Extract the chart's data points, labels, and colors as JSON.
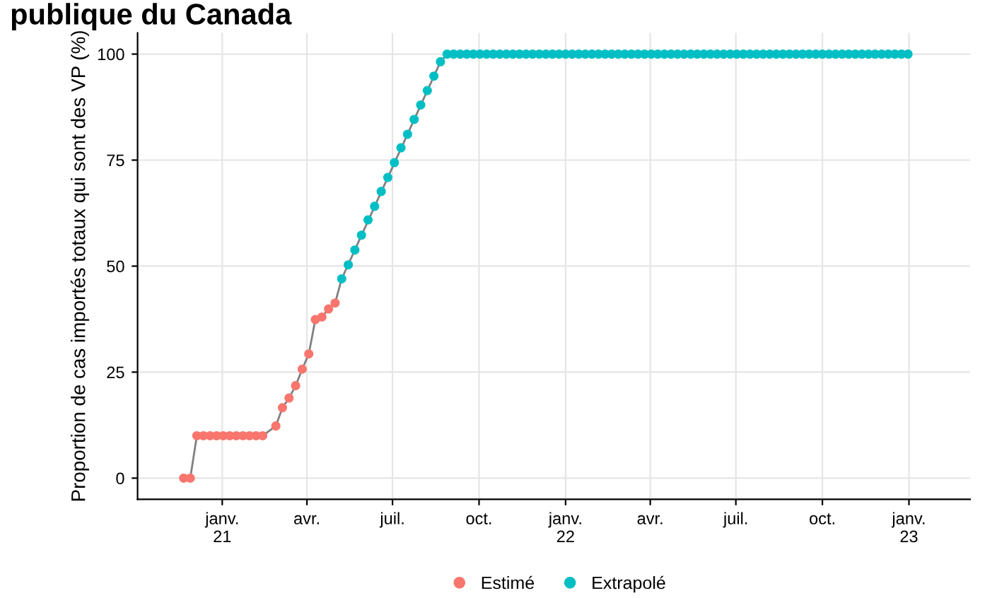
{
  "chart_data": {
    "type": "scatter",
    "title": "publique du Canada",
    "ylabel": "Proportion de cas importés totaux qui sont des VP (%)",
    "xlim": [
      "2020-10-03",
      "2023-03-07"
    ],
    "ylim": [
      -5,
      105
    ],
    "yticks": [
      0,
      25,
      50,
      75,
      100
    ],
    "xticks": [
      {
        "value": "2021-01-01",
        "label": "janv.\n21"
      },
      {
        "value": "2021-04-01",
        "label": "avr."
      },
      {
        "value": "2021-07-01",
        "label": "juil."
      },
      {
        "value": "2021-10-01",
        "label": "oct."
      },
      {
        "value": "2022-01-01",
        "label": "janv.\n22"
      },
      {
        "value": "2022-04-01",
        "label": "avr."
      },
      {
        "value": "2022-07-01",
        "label": "juil."
      },
      {
        "value": "2022-10-01",
        "label": "oct."
      },
      {
        "value": "2023-01-01",
        "label": "janv.\n23"
      }
    ],
    "grid": true,
    "legend": "bottom",
    "marker": "circle",
    "series": [
      {
        "type": "line",
        "marker": "none",
        "color": "#808080",
        "x": [
          "2020-11-21",
          "2020-11-28",
          "2020-12-05",
          "2021-02-13",
          "2021-02-27",
          "2021-03-06",
          "2021-03-13",
          "2021-03-20",
          "2021-03-27",
          "2021-04-03",
          "2021-04-10",
          "2021-04-17",
          "2021-04-24",
          "2021-05-01",
          "2021-05-08",
          "2021-08-21",
          "2021-08-28",
          "2022-12-31"
        ],
        "values": [
          0,
          0,
          10,
          10,
          12.3,
          16.6,
          18.9,
          21.8,
          25.7,
          29.3,
          37.4,
          38.0,
          39.9,
          41.3,
          47.0,
          98.2,
          100,
          100
        ]
      },
      {
        "name": "Estimé",
        "color": "#f8766d",
        "x": [
          "2020-11-21",
          "2020-11-28",
          "2020-12-05",
          "2020-12-12",
          "2020-12-19",
          "2020-12-26",
          "2021-01-02",
          "2021-01-09",
          "2021-01-16",
          "2021-01-23",
          "2021-01-30",
          "2021-02-06",
          "2021-02-13",
          "2021-02-27",
          "2021-03-06",
          "2021-03-13",
          "2021-03-20",
          "2021-03-27",
          "2021-04-03",
          "2021-04-10",
          "2021-04-17",
          "2021-04-24",
          "2021-05-01"
        ],
        "values": [
          0,
          0,
          10,
          10,
          10,
          10,
          10,
          10,
          10,
          10,
          10,
          10,
          10,
          12.3,
          16.6,
          18.9,
          21.8,
          25.7,
          29.3,
          37.4,
          38.0,
          39.9,
          41.3
        ]
      },
      {
        "name": "Extrapolé",
        "color": "#00bfc4",
        "x": [
          "2021-05-08",
          "2021-05-15",
          "2021-05-22",
          "2021-05-29",
          "2021-06-05",
          "2021-06-12",
          "2021-06-19",
          "2021-06-26",
          "2021-07-03",
          "2021-07-10",
          "2021-07-17",
          "2021-07-24",
          "2021-07-31",
          "2021-08-07",
          "2021-08-14",
          "2021-08-21",
          "2021-08-28",
          "2021-09-04",
          "2021-09-11",
          "2021-09-18",
          "2021-09-25",
          "2021-10-02",
          "2021-10-09",
          "2021-10-16",
          "2021-10-23",
          "2021-10-30",
          "2021-11-06",
          "2021-11-13",
          "2021-11-20",
          "2021-11-27",
          "2021-12-04",
          "2021-12-11",
          "2021-12-18",
          "2021-12-25",
          "2022-01-01",
          "2022-01-08",
          "2022-01-15",
          "2022-01-22",
          "2022-01-29",
          "2022-02-05",
          "2022-02-12",
          "2022-02-19",
          "2022-02-26",
          "2022-03-05",
          "2022-03-12",
          "2022-03-19",
          "2022-03-26",
          "2022-04-02",
          "2022-04-09",
          "2022-04-16",
          "2022-04-23",
          "2022-04-30",
          "2022-05-07",
          "2022-05-14",
          "2022-05-21",
          "2022-05-28",
          "2022-06-04",
          "2022-06-11",
          "2022-06-18",
          "2022-06-25",
          "2022-07-02",
          "2022-07-09",
          "2022-07-16",
          "2022-07-23",
          "2022-07-30",
          "2022-08-06",
          "2022-08-13",
          "2022-08-20",
          "2022-08-27",
          "2022-09-03",
          "2022-09-10",
          "2022-09-17",
          "2022-09-24",
          "2022-10-01",
          "2022-10-08",
          "2022-10-15",
          "2022-10-22",
          "2022-10-29",
          "2022-11-05",
          "2022-11-12",
          "2022-11-19",
          "2022-11-26",
          "2022-12-03",
          "2022-12-10",
          "2022-12-17",
          "2022-12-24",
          "2022-12-31"
        ],
        "values": [
          47.0,
          50.3,
          53.8,
          57.3,
          60.9,
          64.1,
          67.6,
          70.9,
          74.4,
          77.9,
          81.1,
          84.6,
          88.0,
          91.4,
          94.8,
          98.2,
          100,
          100,
          100,
          100,
          100,
          100,
          100,
          100,
          100,
          100,
          100,
          100,
          100,
          100,
          100,
          100,
          100,
          100,
          100,
          100,
          100,
          100,
          100,
          100,
          100,
          100,
          100,
          100,
          100,
          100,
          100,
          100,
          100,
          100,
          100,
          100,
          100,
          100,
          100,
          100,
          100,
          100,
          100,
          100,
          100,
          100,
          100,
          100,
          100,
          100,
          100,
          100,
          100,
          100,
          100,
          100,
          100,
          100,
          100,
          100,
          100,
          100,
          100,
          100,
          100,
          100,
          100,
          100,
          100,
          100,
          100
        ]
      }
    ]
  }
}
